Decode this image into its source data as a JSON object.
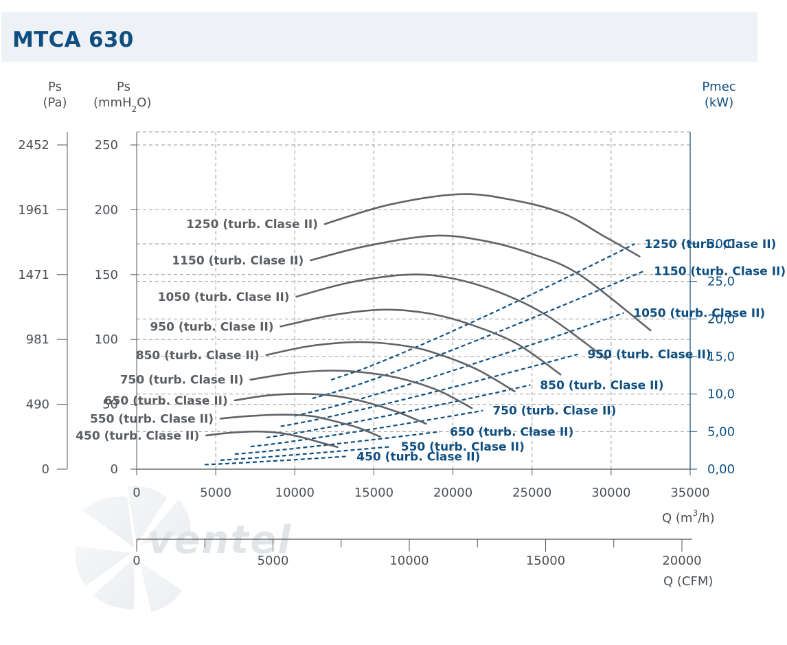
{
  "title": "MTCA 630",
  "axes": {
    "ps_pa_title": "Ps",
    "ps_pa_unit": "(Pa)",
    "ps_mm_title": "Ps",
    "ps_mm_unit": "(mmH",
    "ps_mm_sub": "2",
    "ps_mm_unit_end": "O)",
    "pmec_title": "Pmec",
    "pmec_unit": "(kW)",
    "q_m3h_label": "Q (m",
    "q_m3h_sup": "3",
    "q_m3h_end": "/h)",
    "q_cfm_label": "Q (CFM)"
  },
  "watermark": "ventel",
  "colors": {
    "pressure_curve": "#5f6368",
    "power_curve": "#0e4e80",
    "grid": "#9a9a9a",
    "title": "#0e4e80",
    "header_bg": "#eef2f6"
  },
  "chart_data": {
    "type": "line",
    "title": "MTCA 630",
    "x_axis": {
      "label": "Q (m3/h)",
      "range": [
        0,
        35000
      ],
      "ticks": [
        "0",
        "5000",
        "10000",
        "15000",
        "20000",
        "25000",
        "30000",
        "35000"
      ],
      "tick_values": [
        0,
        5000,
        10000,
        15000,
        20000,
        25000,
        30000,
        35000
      ]
    },
    "x_axis_secondary": {
      "label": "Q (CFM)",
      "range": [
        0,
        20600
      ],
      "ticks": [
        "0",
        "5000",
        "10000",
        "15000",
        "20000"
      ],
      "tick_values": [
        0,
        5000,
        10000,
        15000,
        20000
      ]
    },
    "y_axis_mmh2o": {
      "label": "Ps (mmH2O)",
      "range": [
        0,
        260
      ],
      "ticks": [
        "0",
        "50",
        "100",
        "150",
        "200",
        "250"
      ],
      "tick_values": [
        0,
        50,
        100,
        150,
        200,
        250
      ]
    },
    "y_axis_pa": {
      "label": "Ps (Pa)",
      "ticks": [
        "0",
        "490",
        "981",
        "1471",
        "1961",
        "2452"
      ],
      "tick_values_mmh2o": [
        0,
        50,
        100,
        150,
        200,
        250
      ]
    },
    "y_axis_power": {
      "label": "Pmec (kW)",
      "range": [
        0,
        30
      ],
      "ticks": [
        "0,00",
        "5,00",
        "10,0",
        "15,0",
        "20,0",
        "25,0",
        "30,0"
      ],
      "tick_values": [
        0,
        5,
        10,
        15,
        20,
        25,
        30
      ]
    },
    "grid": true,
    "pressure_series": [
      {
        "name": "1250 (turb. Clase II)",
        "points": [
          [
            11900,
            189
          ],
          [
            16000,
            204
          ],
          [
            20500,
            212
          ],
          [
            24000,
            207
          ],
          [
            27000,
            197
          ],
          [
            29500,
            180
          ],
          [
            31800,
            164
          ]
        ]
      },
      {
        "name": "1150 (turb. Clase II)",
        "points": [
          [
            11000,
            161
          ],
          [
            14500,
            172
          ],
          [
            18800,
            180
          ],
          [
            22000,
            176
          ],
          [
            25000,
            166
          ],
          [
            28000,
            150
          ],
          [
            32500,
            107
          ]
        ]
      },
      {
        "name": "1050 (turb. Clase II)",
        "points": [
          [
            10100,
            133
          ],
          [
            13500,
            144
          ],
          [
            17200,
            150
          ],
          [
            20000,
            147
          ],
          [
            23000,
            136
          ],
          [
            26000,
            118
          ],
          [
            29700,
            85
          ]
        ]
      },
      {
        "name": "950 (turb. Clase II)",
        "points": [
          [
            9100,
            110
          ],
          [
            12500,
            119
          ],
          [
            15700,
            123
          ],
          [
            18500,
            120
          ],
          [
            21000,
            112
          ],
          [
            24000,
            97
          ],
          [
            26800,
            73
          ]
        ]
      },
      {
        "name": "850 (turb. Clase II)",
        "points": [
          [
            8200,
            88
          ],
          [
            11000,
            95
          ],
          [
            14100,
            98
          ],
          [
            17000,
            95
          ],
          [
            19000,
            89
          ],
          [
            21500,
            77
          ],
          [
            23900,
            60
          ]
        ]
      },
      {
        "name": "750 (turb. Clase II)",
        "points": [
          [
            7200,
            69
          ],
          [
            9800,
            74
          ],
          [
            12400,
            76
          ],
          [
            14800,
            74
          ],
          [
            17000,
            69
          ],
          [
            19200,
            60
          ],
          [
            21200,
            47
          ]
        ]
      },
      {
        "name": "650 (turb. Clase II)",
        "points": [
          [
            6200,
            53
          ],
          [
            8400,
            57
          ],
          [
            10800,
            58
          ],
          [
            12800,
            56
          ],
          [
            14700,
            51
          ],
          [
            16500,
            44
          ],
          [
            18300,
            35
          ]
        ]
      },
      {
        "name": "550 (turb. Clase II)",
        "points": [
          [
            5300,
            39
          ],
          [
            7200,
            41
          ],
          [
            9200,
            42
          ],
          [
            11000,
            41
          ],
          [
            12500,
            37
          ],
          [
            14000,
            32
          ],
          [
            15400,
            25
          ]
        ]
      },
      {
        "name": "450 (turb. Clase II)",
        "points": [
          [
            4400,
            26
          ],
          [
            5900,
            28
          ],
          [
            7500,
            29
          ],
          [
            9000,
            28
          ],
          [
            10300,
            25
          ],
          [
            11500,
            21
          ],
          [
            12700,
            17
          ]
        ]
      }
    ],
    "power_series": [
      {
        "name": "1250 (turb. Clase II)",
        "x_range": [
          12300,
          31500
        ],
        "kw_range": [
          11.9,
          30.0
        ]
      },
      {
        "name": "1150 (turb. Clase II)",
        "x_range": [
          11100,
          32100
        ],
        "kw_range": [
          9.4,
          26.4
        ]
      },
      {
        "name": "1050 (turb. Clase II)",
        "x_range": [
          10000,
          30800
        ],
        "kw_range": [
          7.1,
          20.8
        ]
      },
      {
        "name": "950 (turb. Clase II)",
        "x_range": [
          9100,
          27900
        ],
        "kw_range": [
          5.7,
          15.3
        ]
      },
      {
        "name": "850 (turb. Clase II)",
        "x_range": [
          8200,
          24900
        ],
        "kw_range": [
          4.2,
          11.2
        ]
      },
      {
        "name": "750 (turb. Clase II)",
        "x_range": [
          7200,
          21900
        ],
        "kw_range": [
          3.0,
          7.8
        ]
      },
      {
        "name": "650 (turb. Clase II)",
        "x_range": [
          6200,
          19200
        ],
        "kw_range": [
          2.0,
          5.0
        ]
      },
      {
        "name": "550 (turb. Clase II)",
        "x_range": [
          5300,
          16100
        ],
        "kw_range": [
          1.2,
          3.0
        ]
      },
      {
        "name": "450 (turb. Clase II)",
        "x_range": [
          4300,
          13300
        ],
        "kw_range": [
          0.6,
          1.7
        ]
      }
    ]
  }
}
